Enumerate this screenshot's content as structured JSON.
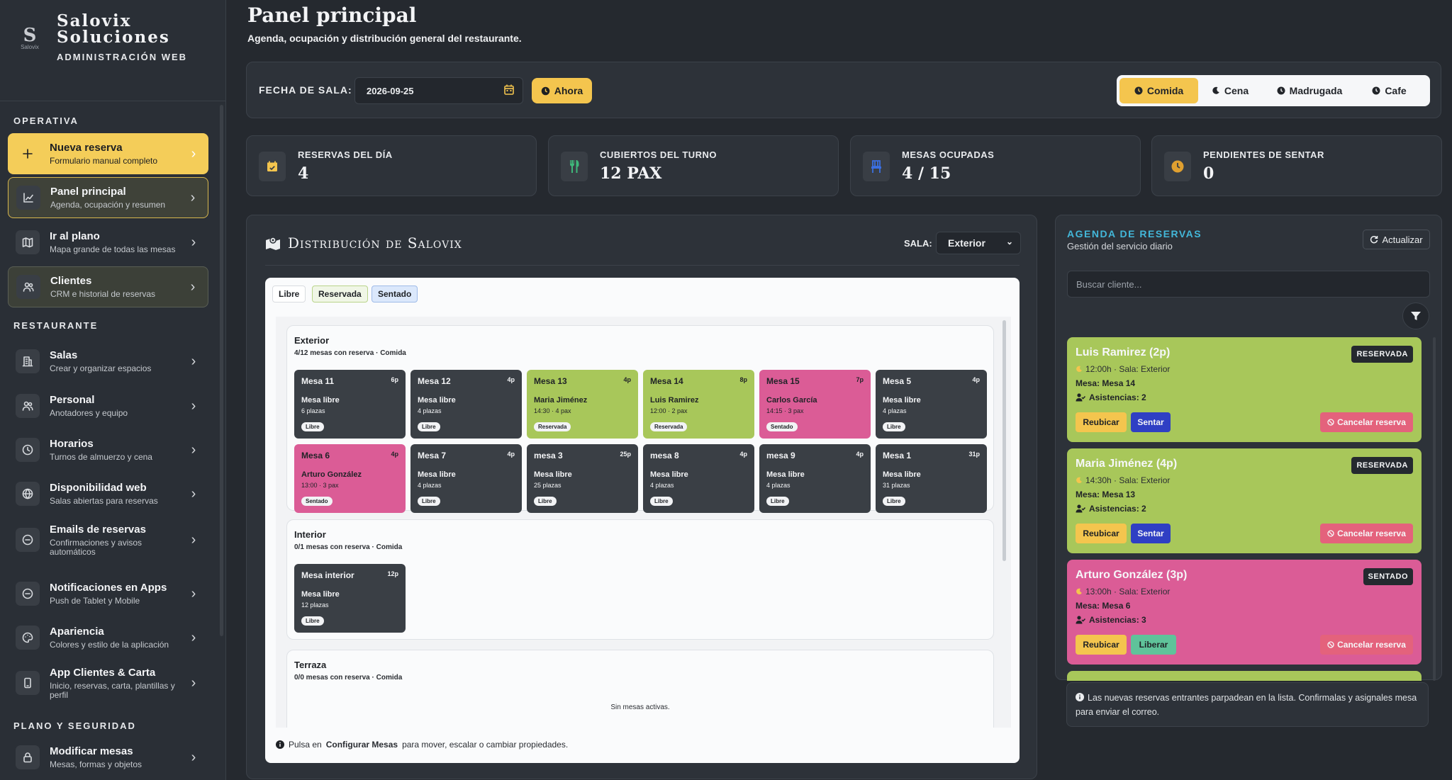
{
  "brand": {
    "logo_letter": "S",
    "logo_text": "Salovix",
    "name_line1": "Salovix",
    "name_line2": "Soluciones",
    "subtitle": "ADMINISTRACIÓN WEB"
  },
  "sidebar": {
    "sections": [
      "OPERATIVA",
      "RESTAURANTE",
      "PLANO Y SEGURIDAD"
    ],
    "items": [
      {
        "label": "Nueva reserva",
        "desc": "Formulario manual completo",
        "icon": "plus-icon"
      },
      {
        "label": "Panel principal",
        "desc": "Agenda, ocupación y resumen",
        "icon": "chart-line-icon"
      },
      {
        "label": "Ir al plano",
        "desc": "Mapa grande de todas las mesas",
        "icon": "map-icon"
      },
      {
        "label": "Clientes",
        "desc": "CRM e historial de reservas",
        "icon": "users-icon"
      },
      {
        "label": "Salas",
        "desc": "Crear y organizar espacios",
        "icon": "building-icon"
      },
      {
        "label": "Personal",
        "desc": "Anotadores y equipo",
        "icon": "users-icon"
      },
      {
        "label": "Horarios",
        "desc": "Turnos de almuerzo y cena",
        "icon": "clock-icon"
      },
      {
        "label": "Disponibilidad web",
        "desc": "Salas abiertas para reservas",
        "icon": "globe-icon"
      },
      {
        "label": "Emails de reservas",
        "desc": "Confirmaciones y avisos automáticos",
        "icon": "minus-circle-icon"
      },
      {
        "label": "Notificaciones en Apps",
        "desc": "Push de Tablet y Mobile",
        "icon": "minus-circle-icon"
      },
      {
        "label": "Apariencia",
        "desc": "Colores y estilo de la aplicación",
        "icon": "palette-icon"
      },
      {
        "label": "App Clientes & Carta",
        "desc": "Inicio, reservas, carta, plantillas y perfil",
        "icon": "phone-icon"
      },
      {
        "label": "Modificar mesas",
        "desc": "Mesas, formas y objetos",
        "icon": "lock-icon"
      }
    ]
  },
  "header": {
    "title": "Panel principal",
    "subtitle": "Agenda, ocupación y distribución general del restaurante."
  },
  "toolbar": {
    "date_label": "FECHA DE SALA:",
    "date_value": "2026-09-25",
    "now_label": "Ahora",
    "shifts": [
      "Comida",
      "Cena",
      "Madrugada",
      "Cafe"
    ],
    "active_shift": "Comida"
  },
  "stats": [
    {
      "label": "RESERVAS DEL DÍA",
      "value": "4",
      "icon": "calendar-check-icon",
      "color": "#f4c54e"
    },
    {
      "label": "CUBIERTOS DEL TURNO",
      "value": "12 PAX",
      "icon": "utensils-icon",
      "color": "#3fb87a"
    },
    {
      "label": "MESAS OCUPADAS",
      "value": "4 / 15",
      "icon": "chair-icon",
      "color": "#3b6fe0"
    },
    {
      "label": "PENDIENTES DE SENTAR",
      "value": "0",
      "icon": "clock-icon",
      "color": "#e0a030"
    }
  ],
  "distribution": {
    "title": "Distribución de Salovix",
    "sala_label": "SALA:",
    "sala_value": "Exterior",
    "legend": [
      "Libre",
      "Reservada",
      "Sentado"
    ],
    "zones": [
      {
        "name": "Exterior",
        "sub": "4/12 mesas con reserva · Comida",
        "tables": [
          {
            "name": "Mesa 11",
            "cap": "6p",
            "status": "libre",
            "guest": "Mesa libre",
            "info": "6 plazas",
            "badge": "Libre"
          },
          {
            "name": "Mesa 12",
            "cap": "4p",
            "status": "libre",
            "guest": "Mesa libre",
            "info": "4 plazas",
            "badge": "Libre"
          },
          {
            "name": "Mesa 13",
            "cap": "4p",
            "status": "reservada",
            "guest": "Maria Jiménez",
            "info": "14:30 · 4 pax",
            "badge": "Reservada"
          },
          {
            "name": "Mesa 14",
            "cap": "8p",
            "status": "reservada",
            "guest": "Luis Ramirez",
            "info": "12:00 · 2 pax",
            "badge": "Reservada"
          },
          {
            "name": "Mesa 15",
            "cap": "7p",
            "status": "sentado",
            "guest": "Carlos García",
            "info": "14:15 · 3 pax",
            "badge": "Sentado"
          },
          {
            "name": "Mesa 5",
            "cap": "4p",
            "status": "libre",
            "guest": "Mesa libre",
            "info": "4 plazas",
            "badge": "Libre"
          },
          {
            "name": "Mesa 6",
            "cap": "4p",
            "status": "sentado",
            "guest": "Arturo González",
            "info": "13:00 · 3 pax",
            "badge": "Sentado"
          },
          {
            "name": "Mesa 7",
            "cap": "4p",
            "status": "libre",
            "guest": "Mesa libre",
            "info": "4 plazas",
            "badge": "Libre"
          },
          {
            "name": "mesa 3",
            "cap": "25p",
            "status": "libre",
            "guest": "Mesa libre",
            "info": "25 plazas",
            "badge": "Libre"
          },
          {
            "name": "mesa 8",
            "cap": "4p",
            "status": "libre",
            "guest": "Mesa libre",
            "info": "4 plazas",
            "badge": "Libre"
          },
          {
            "name": "mesa 9",
            "cap": "4p",
            "status": "libre",
            "guest": "Mesa libre",
            "info": "4 plazas",
            "badge": "Libre"
          },
          {
            "name": "Mesa 1",
            "cap": "31p",
            "status": "libre",
            "guest": "Mesa libre",
            "info": "31 plazas",
            "badge": "Libre"
          }
        ]
      },
      {
        "name": "Interior",
        "sub": "0/1 mesas con reserva · Comida",
        "tables": [
          {
            "name": "Mesa interior",
            "cap": "12p",
            "status": "libre",
            "guest": "Mesa libre",
            "info": "12 plazas",
            "badge": "Libre"
          }
        ]
      },
      {
        "name": "Terraza",
        "sub": "0/0 mesas con reserva · Comida",
        "empty": "Sin mesas activas.",
        "tables": []
      }
    ],
    "footer_prefix": "Pulsa en",
    "footer_link": "Configurar Mesas",
    "footer_suffix": "para mover, escalar o cambiar propiedades."
  },
  "agenda": {
    "title": "AGENDA DE RESERVAS",
    "subtitle": "Gestión del servicio diario",
    "refresh_label": "Actualizar",
    "search_placeholder": "Buscar cliente...",
    "reservations": [
      {
        "name": "Luis Ramirez (2p)",
        "status": "reservada",
        "badge": "RESERVADA",
        "line1": "12:00h · Sala: Exterior",
        "mesa": "Mesa: Mesa 14",
        "asistencias": "Asistencias: 2",
        "btn1": "Reubicar",
        "btn2": "Sentar",
        "cancel": "Cancelar reserva"
      },
      {
        "name": "Maria Jiménez (4p)",
        "status": "reservada",
        "badge": "RESERVADA",
        "line1": "14:30h · Sala: Exterior",
        "mesa": "Mesa: Mesa 13",
        "asistencias": "Asistencias: 2",
        "btn1": "Reubicar",
        "btn2": "Sentar",
        "cancel": "Cancelar reserva"
      },
      {
        "name": "Arturo González (3p)",
        "status": "sentado",
        "badge": "SENTADO",
        "line1": "13:00h · Sala: Exterior",
        "mesa": "Mesa: Mesa 6",
        "asistencias": "Asistencias: 3",
        "btn1": "Reubicar",
        "btn2": "Liberar",
        "cancel": "Cancelar reserva"
      }
    ],
    "note": "Las nuevas reservas entrantes parpadean en la lista. Confirmalas y asignales mesa para enviar el correo."
  }
}
